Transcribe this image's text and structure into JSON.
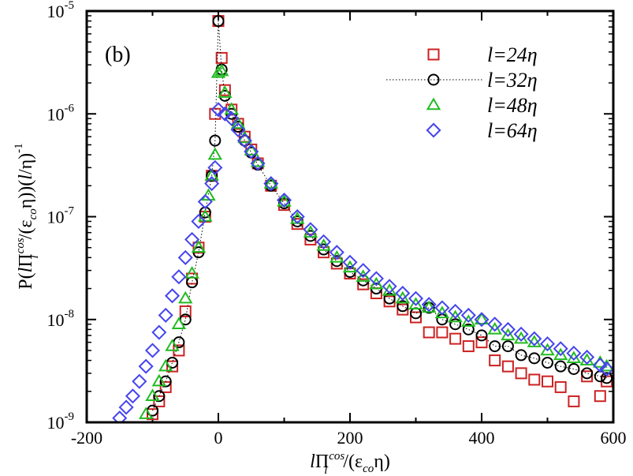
{
  "chart_data": {
    "type": "scatter",
    "panel_label": "(b)",
    "y_scale": "log",
    "xlim": [
      -200,
      600
    ],
    "ylim": [
      1e-09,
      1e-05
    ],
    "x_ticks": [
      -200,
      0,
      200,
      400,
      600
    ],
    "x_tick_labels": [
      "-200",
      "0",
      "200",
      "400",
      "600"
    ],
    "y_ticks": [
      1e-09,
      1e-08,
      1e-07,
      1e-06,
      1e-05
    ],
    "y_tick_bases": [
      "10",
      "10",
      "10",
      "10",
      "10"
    ],
    "y_tick_exponents": [
      "-9",
      "-8",
      "-7",
      "-6",
      "-5"
    ],
    "xlabel": "lΠ^cos_l/(ε_co η)",
    "ylabel": "P(lΠ^cos_l/(ε_co η))(l/η)^-1",
    "legend_position": "top-right",
    "series": [
      {
        "name": "l=24η",
        "marker": "square",
        "color": "#cc2222",
        "x": [
          -100,
          -90,
          -80,
          -70,
          -60,
          -50,
          -40,
          -30,
          -20,
          -10,
          -5,
          0,
          5,
          10,
          20,
          30,
          40,
          50,
          60,
          80,
          100,
          120,
          140,
          160,
          180,
          200,
          220,
          240,
          260,
          280,
          300,
          320,
          340,
          360,
          380,
          400,
          420,
          440,
          460,
          480,
          500,
          520,
          540,
          560,
          580,
          590
        ],
        "y": [
          1.2e-09,
          1.6e-09,
          2.2e-09,
          3.5e-09,
          5e-09,
          1.2e-08,
          2.5e-08,
          5e-08,
          1e-07,
          2.5e-07,
          1e-06,
          8e-06,
          3.5e-06,
          1.7e-06,
          1.1e-06,
          8e-07,
          6e-07,
          4.5e-07,
          3.3e-07,
          2e-07,
          1.3e-07,
          8.5e-08,
          6e-08,
          4.5e-08,
          3.5e-08,
          2.8e-08,
          2.2e-08,
          1.8e-08,
          1.5e-08,
          1.25e-08,
          1.05e-08,
          7.5e-09,
          7.5e-09,
          6.5e-09,
          5.5e-09,
          6e-09,
          4e-09,
          3.5e-09,
          3e-09,
          2.6e-09,
          2.5e-09,
          2.2e-09,
          1.6e-09,
          2.8e-09,
          1.8e-09,
          2.5e-09
        ]
      },
      {
        "name": "l=32η",
        "marker": "circle",
        "color": "#000000",
        "line": "dotted",
        "x": [
          -100,
          -90,
          -80,
          -70,
          -60,
          -50,
          -40,
          -30,
          -20,
          -10,
          -5,
          0,
          5,
          10,
          20,
          30,
          40,
          50,
          60,
          80,
          100,
          120,
          140,
          160,
          180,
          200,
          220,
          240,
          260,
          280,
          300,
          320,
          340,
          360,
          380,
          400,
          420,
          440,
          460,
          480,
          500,
          520,
          540,
          560,
          580,
          590
        ],
        "y": [
          1.3e-09,
          1.8e-09,
          2.5e-09,
          3.8e-09,
          6e-09,
          1e-08,
          2.3e-08,
          4.5e-08,
          1.1e-07,
          2.5e-07,
          5.5e-07,
          8e-06,
          2.7e-06,
          1.5e-06,
          1e-06,
          7.5e-07,
          5.5e-07,
          4.2e-07,
          3.2e-07,
          2e-07,
          1.35e-07,
          9e-08,
          6.5e-08,
          4.8e-08,
          3.7e-08,
          2.9e-08,
          2.4e-08,
          2e-08,
          1.6e-08,
          1.35e-08,
          1.15e-08,
          1.3e-08,
          1e-08,
          9e-09,
          8e-09,
          7e-09,
          5.5e-09,
          5.5e-09,
          4.5e-09,
          4.2e-09,
          3.8e-09,
          3.5e-09,
          3.3e-09,
          3e-09,
          2.8e-09,
          2.7e-09
        ]
      },
      {
        "name": "l=48η",
        "marker": "triangle",
        "color": "#22bb22",
        "x": [
          -110,
          -100,
          -90,
          -80,
          -70,
          -60,
          -50,
          -40,
          -30,
          -20,
          -15,
          -10,
          -5,
          0,
          5,
          10,
          20,
          30,
          40,
          50,
          60,
          80,
          100,
          120,
          140,
          160,
          180,
          200,
          220,
          240,
          260,
          280,
          300,
          320,
          340,
          360,
          380,
          400,
          420,
          440,
          460,
          480,
          500,
          520,
          540,
          560,
          580,
          590
        ],
        "y": [
          1.2e-09,
          1.8e-09,
          2.5e-09,
          3.5e-09,
          5.5e-09,
          9e-09,
          1.6e-08,
          2.8e-08,
          5e-08,
          1e-07,
          1.6e-07,
          2.5e-07,
          4e-07,
          2.5e-06,
          2.6e-06,
          1.6e-06,
          1.1e-06,
          8e-07,
          5.8e-07,
          4.4e-07,
          3.4e-07,
          2.1e-07,
          1.4e-07,
          9.5e-08,
          7e-08,
          5.2e-08,
          4e-08,
          3.2e-08,
          2.6e-08,
          2.2e-08,
          1.9e-08,
          1.6e-08,
          1.4e-08,
          1.3e-08,
          1.15e-08,
          1.05e-08,
          9.5e-09,
          1e-08,
          8e-09,
          7e-09,
          6.5e-09,
          6e-09,
          5e-09,
          4.5e-09,
          4.2e-09,
          4e-09,
          3.8e-09,
          3.5e-09
        ]
      },
      {
        "name": "l=64η",
        "marker": "diamond",
        "color": "#4444ee",
        "x": [
          -150,
          -140,
          -130,
          -120,
          -110,
          -100,
          -90,
          -80,
          -70,
          -60,
          -50,
          -40,
          -30,
          -20,
          -10,
          -5,
          0,
          10,
          20,
          30,
          40,
          50,
          60,
          80,
          100,
          120,
          140,
          160,
          180,
          200,
          220,
          240,
          260,
          280,
          300,
          320,
          340,
          360,
          380,
          400,
          420,
          440,
          460,
          480,
          500,
          520,
          540,
          560,
          580,
          590
        ],
        "y": [
          1.1e-09,
          1.4e-09,
          1.8e-09,
          2.5e-09,
          3.5e-09,
          5e-09,
          7.5e-09,
          1.1e-08,
          1.7e-08,
          2.6e-08,
          4e-08,
          6e-08,
          9e-08,
          1.4e-07,
          2.1e-07,
          3e-07,
          1.1e-06,
          1e-06,
          9e-07,
          7e-07,
          5.5e-07,
          4.3e-07,
          3.3e-07,
          2.1e-07,
          1.45e-07,
          1e-07,
          7.5e-08,
          5.7e-08,
          4.5e-08,
          3.6e-08,
          3e-08,
          2.5e-08,
          2.1e-08,
          1.8e-08,
          1.6e-08,
          1.4e-08,
          1.3e-08,
          1.2e-08,
          1.1e-08,
          1e-08,
          9e-09,
          8e-09,
          7.2e-09,
          6.5e-09,
          5.8e-09,
          5.2e-09,
          4.7e-09,
          4.3e-09,
          3.6e-09,
          3.3e-09
        ]
      }
    ]
  }
}
